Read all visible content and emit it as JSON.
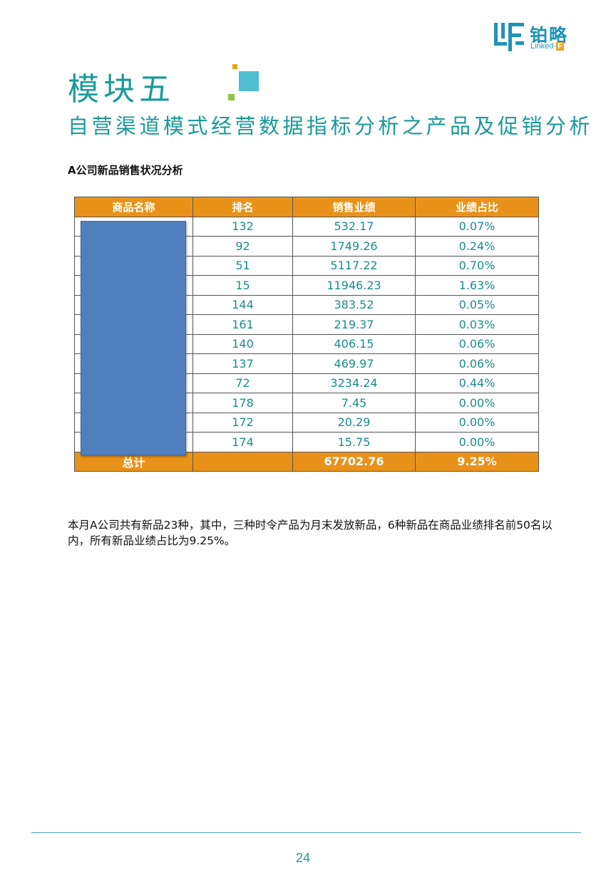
{
  "logo": {
    "cn": "铂略",
    "en_prefix": "Linked-",
    "en_suffix": "F"
  },
  "module_title": "模块五",
  "subtitle": "自营渠道模式经营数据指标分析之产品及促销分析",
  "section_heading": "A公司新品销售状况分析",
  "table": {
    "headers": [
      "商品名称",
      "排名",
      "销售业绩",
      "业绩占比"
    ],
    "rows": [
      {
        "name": "",
        "rank": "132",
        "sales": "532.17",
        "share": "0.07%"
      },
      {
        "name": "",
        "rank": "92",
        "sales": "1749.26",
        "share": "0.24%"
      },
      {
        "name": "",
        "rank": "51",
        "sales": "5117.22",
        "share": "0.70%"
      },
      {
        "name": "",
        "rank": "15",
        "sales": "11946.23",
        "share": "1.63%"
      },
      {
        "name": "",
        "rank": "144",
        "sales": "383.52",
        "share": "0.05%"
      },
      {
        "name": "",
        "rank": "161",
        "sales": "219.37",
        "share": "0.03%"
      },
      {
        "name": "",
        "rank": "140",
        "sales": "406.15",
        "share": "0.06%"
      },
      {
        "name": "",
        "rank": "137",
        "sales": "469.97",
        "share": "0.06%"
      },
      {
        "name": "",
        "rank": "72",
        "sales": "3234.24",
        "share": "0.44%"
      },
      {
        "name": "",
        "rank": "178",
        "sales": "7.45",
        "share": "0.00%"
      },
      {
        "name": "",
        "rank": "172",
        "sales": "20.29",
        "share": "0.00%"
      },
      {
        "name": "",
        "rank": "174",
        "sales": "15.75",
        "share": "0.00%"
      }
    ],
    "total": {
      "label": "总计",
      "rank": "",
      "sales": "67702.76",
      "share": "9.25%"
    }
  },
  "paragraph": "本月A公司共有新品23种，其中，三种时令产品为月末发放新品，6种新品在商品业绩排名前50名以内，所有新品业绩占比为9.25%。",
  "page_number": "24",
  "colors": {
    "accent_teal": "#1a9a9a",
    "header_orange": "#e8921a",
    "redaction_blue": "#4f7fbc",
    "logo_blue": "#1f93b8"
  }
}
